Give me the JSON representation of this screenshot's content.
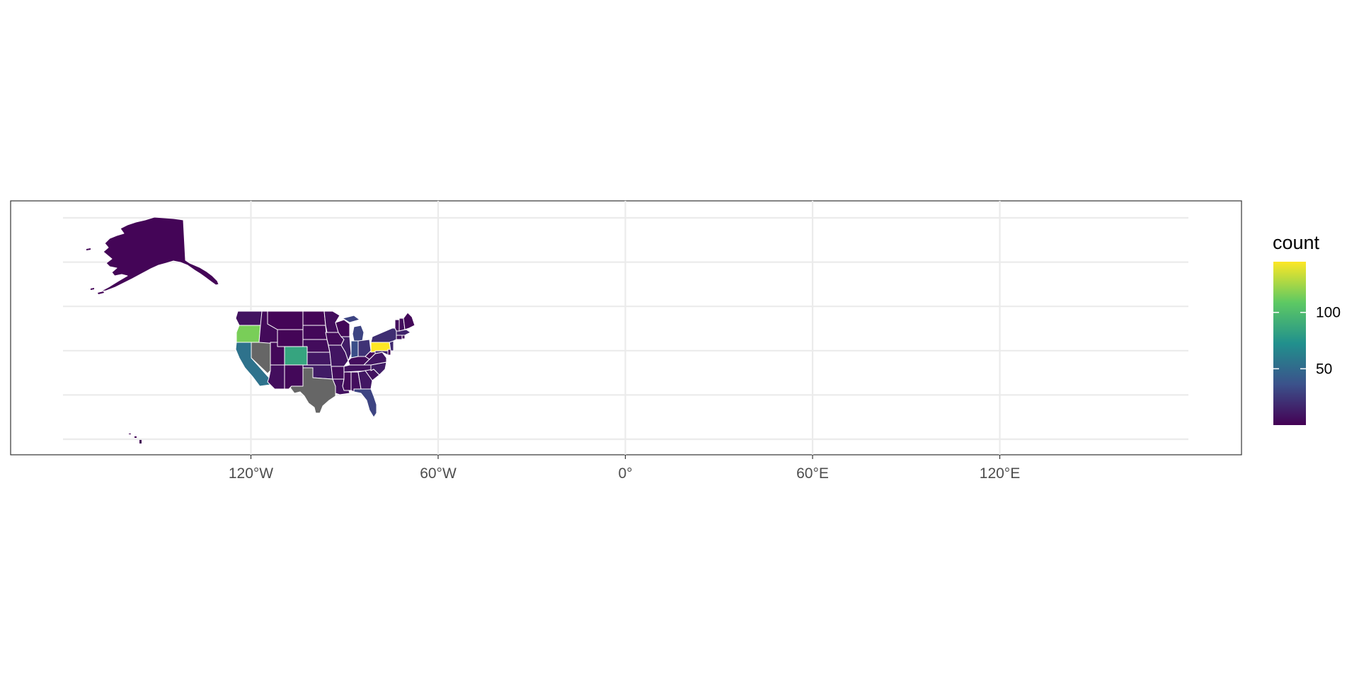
{
  "chart_data": {
    "type": "choropleth",
    "x_axis": {
      "range": [
        -180,
        180
      ],
      "ticks": [
        {
          "value": -120,
          "label": "120°W"
        },
        {
          "value": -60,
          "label": "60°W"
        },
        {
          "value": 0,
          "label": "0°"
        },
        {
          "value": 60,
          "label": "60°E"
        },
        {
          "value": 120,
          "label": "120°E"
        }
      ]
    },
    "y_axis": {
      "range": [
        18,
        72
      ],
      "gridlines": [
        20,
        30,
        40,
        50,
        60,
        70
      ]
    },
    "grid": true,
    "legend": {
      "title": "count",
      "position": "right",
      "type": "continuous",
      "min": 0,
      "max": 145,
      "ticks": [
        {
          "value": 50,
          "label": "50"
        },
        {
          "value": 100,
          "label": "100"
        }
      ],
      "palette": [
        "#440154",
        "#3b528b",
        "#21908d",
        "#5dc963",
        "#fde725"
      ],
      "na_color": "#666666"
    },
    "regions": [
      {
        "name": "Alaska",
        "value": 2
      },
      {
        "name": "Hawaii",
        "value": 2
      },
      {
        "name": "Washington",
        "value": 8
      },
      {
        "name": "Oregon",
        "value": 115
      },
      {
        "name": "California",
        "value": 55
      },
      {
        "name": "Nevada",
        "value": null
      },
      {
        "name": "Idaho",
        "value": 4
      },
      {
        "name": "Montana",
        "value": 2
      },
      {
        "name": "Wyoming",
        "value": 2
      },
      {
        "name": "Utah",
        "value": 3
      },
      {
        "name": "Arizona",
        "value": 6
      },
      {
        "name": "Colorado",
        "value": 85
      },
      {
        "name": "New Mexico",
        "value": 3
      },
      {
        "name": "North Dakota",
        "value": 2
      },
      {
        "name": "South Dakota",
        "value": 3
      },
      {
        "name": "Nebraska",
        "value": 5
      },
      {
        "name": "Kansas",
        "value": 10
      },
      {
        "name": "Oklahoma",
        "value": 12
      },
      {
        "name": "Texas",
        "value": null
      },
      {
        "name": "Minnesota",
        "value": 6
      },
      {
        "name": "Iowa",
        "value": 4
      },
      {
        "name": "Missouri",
        "value": 9
      },
      {
        "name": "Arkansas",
        "value": 5
      },
      {
        "name": "Louisiana",
        "value": 7
      },
      {
        "name": "Wisconsin",
        "value": 3
      },
      {
        "name": "Illinois",
        "value": 12
      },
      {
        "name": "Michigan",
        "value": 30
      },
      {
        "name": "Indiana",
        "value": 35
      },
      {
        "name": "Ohio",
        "value": 22
      },
      {
        "name": "Kentucky",
        "value": 6
      },
      {
        "name": "Tennessee",
        "value": 8
      },
      {
        "name": "Mississippi",
        "value": 4
      },
      {
        "name": "Alabama",
        "value": 6
      },
      {
        "name": "Georgia",
        "value": 10
      },
      {
        "name": "Florida",
        "value": 30
      },
      {
        "name": "South Carolina",
        "value": 7
      },
      {
        "name": "North Carolina",
        "value": 12
      },
      {
        "name": "Virginia",
        "value": 10
      },
      {
        "name": "West Virginia",
        "value": 3
      },
      {
        "name": "Pennsylvania",
        "value": 145
      },
      {
        "name": "New York",
        "value": 20
      },
      {
        "name": "Maryland",
        "value": 15
      },
      {
        "name": "New Jersey",
        "value": 18
      },
      {
        "name": "Delaware",
        "value": 4
      },
      {
        "name": "Connecticut",
        "value": 8
      },
      {
        "name": "Rhode Island",
        "value": 3
      },
      {
        "name": "Massachusetts",
        "value": 15
      },
      {
        "name": "Vermont",
        "value": 6
      },
      {
        "name": "New Hampshire",
        "value": 6
      },
      {
        "name": "Maine",
        "value": 3
      }
    ]
  }
}
